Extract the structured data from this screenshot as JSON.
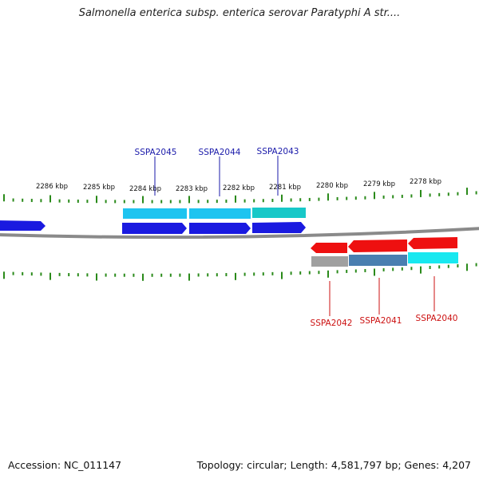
{
  "title": "Salmonella enterica subsp. enterica serovar Paratyphi A str....",
  "accession": "Accession: NC_011147",
  "topology": "Topology: circular; Length: 4,581,797 bp; Genes: 4,207",
  "ruler_labels": [
    "2286 kbp",
    "2285 kbp",
    "2284 kbp",
    "2283 kbp",
    "2282 kbp",
    "2281 kbp",
    "2280 kbp",
    "2279 kbp",
    "2278 kbp"
  ],
  "genes_top": [
    "SSPA2045",
    "SSPA2044",
    "SSPA2043"
  ],
  "genes_bottom": [
    "SSPA2042",
    "SSPA2041",
    "SSPA2040"
  ],
  "colors": {
    "backbone": "#8a8a8a",
    "tick": "#2a8a1a",
    "forward_gene": "#1a1ae0",
    "reverse_gene": "#e01010",
    "forward_label": "#1a1aaa",
    "reverse_label": "#cc1010",
    "cds_cyan": "#1ec4f0",
    "cds_teal": "#18c8c8",
    "cds_grey": "#a0a0a0",
    "cds_steel": "#4a7fb0",
    "cds_aqua": "#18e8f0"
  }
}
